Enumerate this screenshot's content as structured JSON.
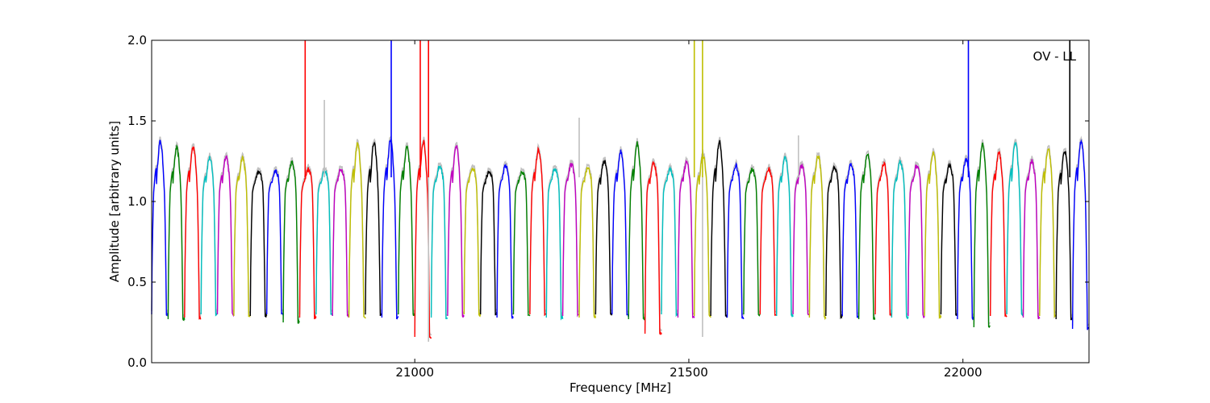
{
  "chart_data": {
    "type": "line",
    "title": "",
    "annotation": "OV - LL",
    "xlabel": "Frequency [MHz]",
    "ylabel": "Amplitude [arbitrary units]",
    "xlim": [
      20520,
      22230
    ],
    "ylim": [
      0.0,
      2.0
    ],
    "xticks": [
      21000,
      21500,
      22000
    ],
    "xtick_labels": [
      "21000",
      "21500",
      "22000"
    ],
    "yticks": [
      0.0,
      0.5,
      1.0,
      1.5,
      2.0
    ],
    "ytick_labels": [
      "0.0",
      "0.5",
      "1.0",
      "1.5",
      "2.0"
    ],
    "grid": false,
    "background_trace_color": "#c0c0c0",
    "palette": [
      "#0000ff",
      "#008000",
      "#ff0000",
      "#00bfbf",
      "#bf00bf",
      "#bfbf00",
      "#000000"
    ],
    "channel_width_mhz": 30,
    "channel_start_mhz": 20520,
    "channel_count": 57,
    "channel_peak_levels": [
      1.37,
      1.33,
      1.34,
      1.27,
      1.28,
      1.27,
      1.18,
      1.19,
      1.24,
      1.2,
      1.19,
      1.2,
      1.36,
      1.36,
      1.38,
      1.34,
      1.37,
      1.22,
      1.34,
      1.21,
      1.19,
      1.22,
      1.18,
      1.32,
      1.2,
      1.23,
      1.21,
      1.25,
      1.31,
      1.36,
      1.24,
      1.2,
      1.24,
      1.28,
      1.37,
      1.22,
      1.2,
      1.2,
      1.27,
      1.22,
      1.28,
      1.21,
      1.23,
      1.29,
      1.23,
      1.24,
      1.22,
      1.3,
      1.22,
      1.26,
      1.35,
      1.3,
      1.37,
      1.25,
      1.33,
      1.31,
      1.38
    ],
    "channel_dip_levels": [
      0.3,
      0.27,
      0.28,
      0.3,
      0.3,
      0.29,
      0.29,
      0.3,
      0.25,
      0.28,
      0.3,
      0.29,
      0.28,
      0.3,
      0.28,
      0.3,
      0.16,
      0.28,
      0.29,
      0.3,
      0.3,
      0.28,
      0.3,
      0.3,
      0.28,
      0.29,
      0.28,
      0.3,
      0.3,
      0.27,
      0.18,
      0.3,
      0.28,
      0.29,
      0.29,
      0.28,
      0.3,
      0.3,
      0.29,
      0.3,
      0.28,
      0.29,
      0.29,
      0.27,
      0.3,
      0.28,
      0.29,
      0.29,
      0.3,
      0.27,
      0.22,
      0.29,
      0.3,
      0.28,
      0.29,
      0.27,
      0.21
    ],
    "spikes": [
      {
        "x": 20800,
        "y": 2.0
      },
      {
        "x": 20835,
        "y": 1.63
      },
      {
        "x": 20957,
        "y": 2.0
      },
      {
        "x": 21010,
        "y": 2.0
      },
      {
        "x": 21025,
        "y": 2.0
      },
      {
        "x": 21025,
        "y": 0.13
      },
      {
        "x": 21300,
        "y": 1.52
      },
      {
        "x": 21510,
        "y": 2.0
      },
      {
        "x": 21525,
        "y": 2.0
      },
      {
        "x": 21525,
        "y": 0.16
      },
      {
        "x": 21700,
        "y": 1.41
      },
      {
        "x": 22010,
        "y": 2.0
      },
      {
        "x": 22195,
        "y": 2.0
      }
    ]
  }
}
